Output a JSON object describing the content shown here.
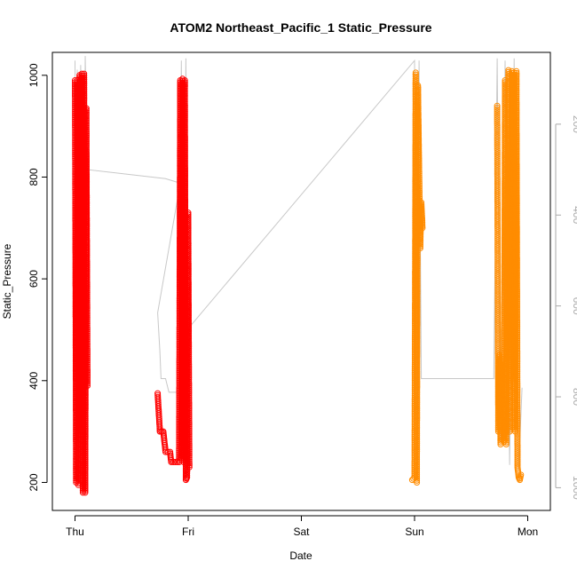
{
  "chart_data": {
    "type": "scatter",
    "title": "ATOM2 Northeast_Pacific_1 Static_Pressure",
    "xlabel": "Date",
    "ylabel": "Static_Pressure",
    "x_ticks": [
      "Thu",
      "Fri",
      "Sat",
      "Sun",
      "Mon"
    ],
    "xlim_days": [
      -0.2,
      4.2
    ],
    "ylim": [
      145,
      1045
    ],
    "y_ticks": [
      200,
      400,
      600,
      800,
      1000
    ],
    "y2_ticks": [
      200,
      400,
      600,
      800,
      1000
    ],
    "y2lim_reversed": [
      42,
      1050
    ],
    "colors": {
      "series_red": "#ff0000",
      "series_orange": "#ff8c00",
      "depth_line": "#c8c8c8"
    },
    "series": [
      {
        "color": "series_red",
        "segments": [
          [
            [
              0.0,
              990
            ],
            [
              0.01,
              200
            ],
            [
              0.02,
              990
            ],
            [
              0.03,
              195
            ],
            [
              0.04,
              1000
            ],
            [
              0.05,
              300
            ],
            [
              0.06,
              1003
            ],
            [
              0.07,
              180
            ],
            [
              0.08,
              1003
            ],
            [
              0.09,
              180
            ],
            [
              0.1,
              935
            ],
            [
              0.11,
              390
            ]
          ],
          [
            [
              0.73,
              375
            ],
            [
              0.75,
              300
            ],
            [
              0.78,
              300
            ],
            [
              0.8,
              260
            ],
            [
              0.84,
              260
            ],
            [
              0.85,
              240
            ],
            [
              0.92,
              240
            ],
            [
              0.93,
              990
            ],
            [
              0.94,
              245
            ],
            [
              0.95,
              993
            ],
            [
              0.96,
              240
            ],
            [
              0.97,
              990
            ],
            [
              0.98,
              205
            ],
            [
              0.99,
              210
            ],
            [
              1.0,
              730
            ],
            [
              1.01,
              230
            ]
          ]
        ]
      },
      {
        "color": "series_orange",
        "segments": [
          [
            [
              2.98,
              205
            ],
            [
              3.0,
              210
            ],
            [
              3.01,
              1005
            ],
            [
              3.02,
              200
            ],
            [
              3.03,
              980
            ],
            [
              3.05,
              660
            ],
            [
              3.06,
              750
            ],
            [
              3.07,
              700
            ]
          ],
          [
            [
              3.73,
              940
            ],
            [
              3.74,
              300
            ],
            [
              3.75,
              450
            ],
            [
              3.76,
              275
            ],
            [
              3.77,
              440
            ],
            [
              3.79,
              280
            ],
            [
              3.8,
              990
            ],
            [
              3.81,
              275
            ],
            [
              3.83,
              1010
            ],
            [
              3.84,
              300
            ],
            [
              3.86,
              1008
            ],
            [
              3.87,
              400
            ],
            [
              3.88,
              1005
            ],
            [
              3.89,
              300
            ],
            [
              3.9,
              1008
            ],
            [
              3.91,
              230
            ],
            [
              3.92,
              210
            ],
            [
              3.93,
              205
            ],
            [
              3.94,
              215
            ]
          ]
        ]
      }
    ],
    "depth_line": [
      [
        0.0,
        60
      ],
      [
        0.01,
        860
      ],
      [
        0.02,
        80
      ],
      [
        0.03,
        880
      ],
      [
        0.05,
        70
      ],
      [
        0.07,
        960
      ],
      [
        0.09,
        50
      ],
      [
        0.11,
        300
      ],
      [
        0.8,
        320
      ],
      [
        0.93,
        330
      ],
      [
        0.73,
        615
      ],
      [
        0.75,
        700
      ],
      [
        0.76,
        760
      ],
      [
        0.8,
        760
      ],
      [
        0.83,
        790
      ],
      [
        0.92,
        790
      ],
      [
        0.94,
        60
      ],
      [
        0.96,
        930
      ],
      [
        0.98,
        55
      ],
      [
        1.0,
        650
      ],
      [
        3.0,
        60
      ],
      [
        3.02,
        980
      ],
      [
        3.04,
        60
      ],
      [
        3.06,
        760
      ],
      [
        3.7,
        760
      ],
      [
        3.73,
        55
      ],
      [
        3.76,
        900
      ],
      [
        3.8,
        60
      ],
      [
        3.84,
        950
      ],
      [
        3.88,
        55
      ],
      [
        3.92,
        960
      ],
      [
        3.95,
        780
      ]
    ]
  }
}
